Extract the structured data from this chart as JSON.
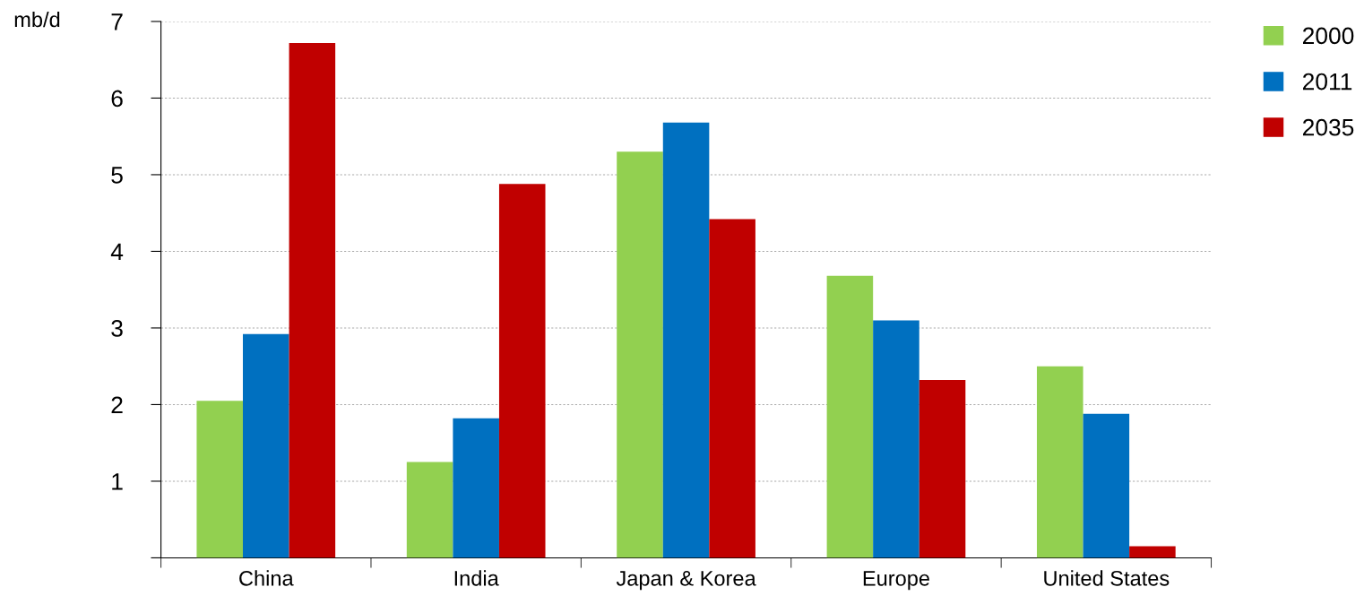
{
  "chart_data": {
    "type": "bar",
    "ylabel": "mb/d",
    "categories": [
      "China",
      "India",
      "Japan & Korea",
      "Europe",
      "United States"
    ],
    "series": [
      {
        "name": "2000",
        "color": "#92d050",
        "values": [
          2.05,
          1.25,
          5.3,
          3.68,
          2.5
        ]
      },
      {
        "name": "2011",
        "color": "#0070c0",
        "values": [
          2.92,
          1.82,
          5.68,
          3.1,
          1.88
        ]
      },
      {
        "name": "2035",
        "color": "#c00000",
        "values": [
          6.72,
          4.88,
          4.42,
          2.32,
          0.15
        ]
      }
    ],
    "ylim": [
      0,
      7
    ],
    "yticks": [
      {
        "value": 0,
        "label": null
      },
      1,
      2,
      3,
      4,
      5,
      6,
      7
    ],
    "grid": "y",
    "legend": "top right"
  }
}
